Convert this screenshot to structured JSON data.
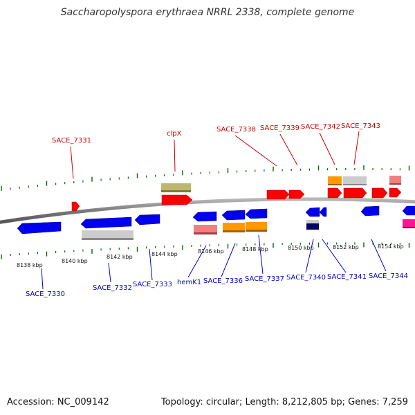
{
  "title": "Saccharopolyspora erythraea NRRL 2338, complete genome",
  "accession_text": "Accession: NC_009142",
  "summary_text": "Topology: circular; Length: 8,212,805 bp; Genes: 7,259",
  "colors": {
    "forward": "#ff0000",
    "reverse": "#0000ee",
    "orange": "#ff9900",
    "grey": "#cccccc",
    "khaki": "#bdb76b",
    "pink": "#f08080",
    "magenta": "#ff1493",
    "navy": "#000066",
    "tick": "#006600",
    "backbone": "#888888",
    "forward_label": "#cc0000",
    "reverse_label": "#0000cc"
  },
  "scale_labels": [
    "8138 kbp",
    "8140 kbp",
    "8142 kbp",
    "8144 kbp",
    "8146 kbp",
    "8148 kbp",
    "8150 kbp",
    "8152 kbp",
    "8154 kbp"
  ],
  "forward_labels": [
    "SACE_7331",
    "clpX",
    "SACE_7338",
    "SACE_7339",
    "SACE_7342",
    "SACE_7343"
  ],
  "reverse_labels": [
    "SACE_7330",
    "SACE_7332",
    "SACE_7333",
    "hemK1",
    "SACE_7336",
    "SACE_7337",
    "SACE_7340",
    "SACE_7341",
    "SACE_7344"
  ]
}
